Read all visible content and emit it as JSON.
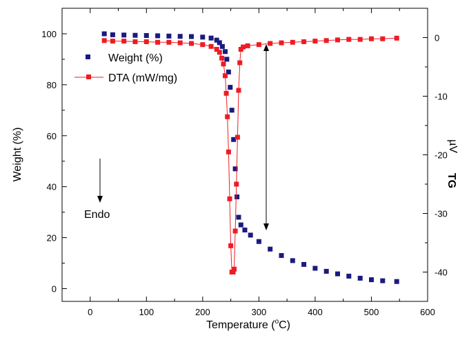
{
  "chart_data": {
    "type": "scatter",
    "title": "",
    "xlabel": "Temperature (°C)",
    "xlabel_main": "Temperature (",
    "xlabel_sup": "o",
    "xlabel_end": "C)",
    "ylabel_left": "Weight (%)",
    "ylabel_right": "TG",
    "ylabel_right_unit": "µV",
    "xlim": [
      -50,
      600
    ],
    "ylim_left": [
      -5,
      110
    ],
    "ylim_right": [
      -45,
      5
    ],
    "xticks": [
      0,
      100,
      200,
      300,
      400,
      500,
      600
    ],
    "yticks_left": [
      0,
      20,
      40,
      60,
      80,
      100
    ],
    "yticks_right": [
      0,
      -10,
      -20,
      -30,
      -40
    ],
    "grid": false,
    "legend_position": "upper-left",
    "annotations": {
      "endo_label": "Endo"
    },
    "series": [
      {
        "name": "Weight (%)",
        "axis": "left",
        "color": "#1a1a80",
        "marker": "square",
        "line": false,
        "x": [
          25,
          40,
          60,
          80,
          100,
          120,
          140,
          160,
          180,
          200,
          215,
          225,
          230,
          235,
          240,
          243,
          246,
          249,
          252,
          255,
          258,
          261,
          264,
          268,
          275,
          285,
          300,
          320,
          340,
          360,
          380,
          400,
          420,
          440,
          460,
          480,
          500,
          520,
          545
        ],
        "y": [
          100,
          99.6,
          99.5,
          99.4,
          99.3,
          99.2,
          99.1,
          99,
          98.9,
          98.7,
          98.3,
          97.5,
          96.5,
          95,
          93,
          90,
          85,
          79,
          70,
          58.5,
          47,
          36,
          28,
          25,
          23,
          21,
          18.5,
          15.5,
          13,
          11,
          9.5,
          8,
          6.8,
          5.8,
          4.9,
          4.1,
          3.5,
          3.1,
          2.8
        ]
      },
      {
        "name": "DTA (mW/mg)",
        "axis": "right",
        "color": "#ee1c24",
        "marker": "square",
        "line": true,
        "x": [
          25,
          40,
          60,
          80,
          100,
          120,
          140,
          160,
          180,
          200,
          215,
          225,
          230,
          234,
          237,
          240,
          242,
          244,
          246,
          248,
          250,
          252,
          254,
          256,
          258,
          260,
          262,
          264,
          266,
          268,
          272,
          280,
          300,
          320,
          340,
          360,
          380,
          400,
          420,
          440,
          460,
          480,
          500,
          520,
          545
        ],
        "y": [
          -0.5,
          -0.6,
          -0.6,
          -0.7,
          -0.7,
          -0.8,
          -0.8,
          -0.9,
          -1.0,
          -1.2,
          -1.5,
          -2,
          -2.5,
          -3.5,
          -4.5,
          -6.5,
          -9.5,
          -13.5,
          -19.5,
          -27.5,
          -35.5,
          -40,
          -40,
          -39.5,
          -33,
          -25,
          -17,
          -9,
          -4.3,
          -2,
          -1.6,
          -1.4,
          -1.2,
          -1.0,
          -0.9,
          -0.8,
          -0.7,
          -0.6,
          -0.5,
          -0.4,
          -0.3,
          -0.3,
          -0.2,
          -0.2,
          -0.1
        ]
      }
    ]
  }
}
